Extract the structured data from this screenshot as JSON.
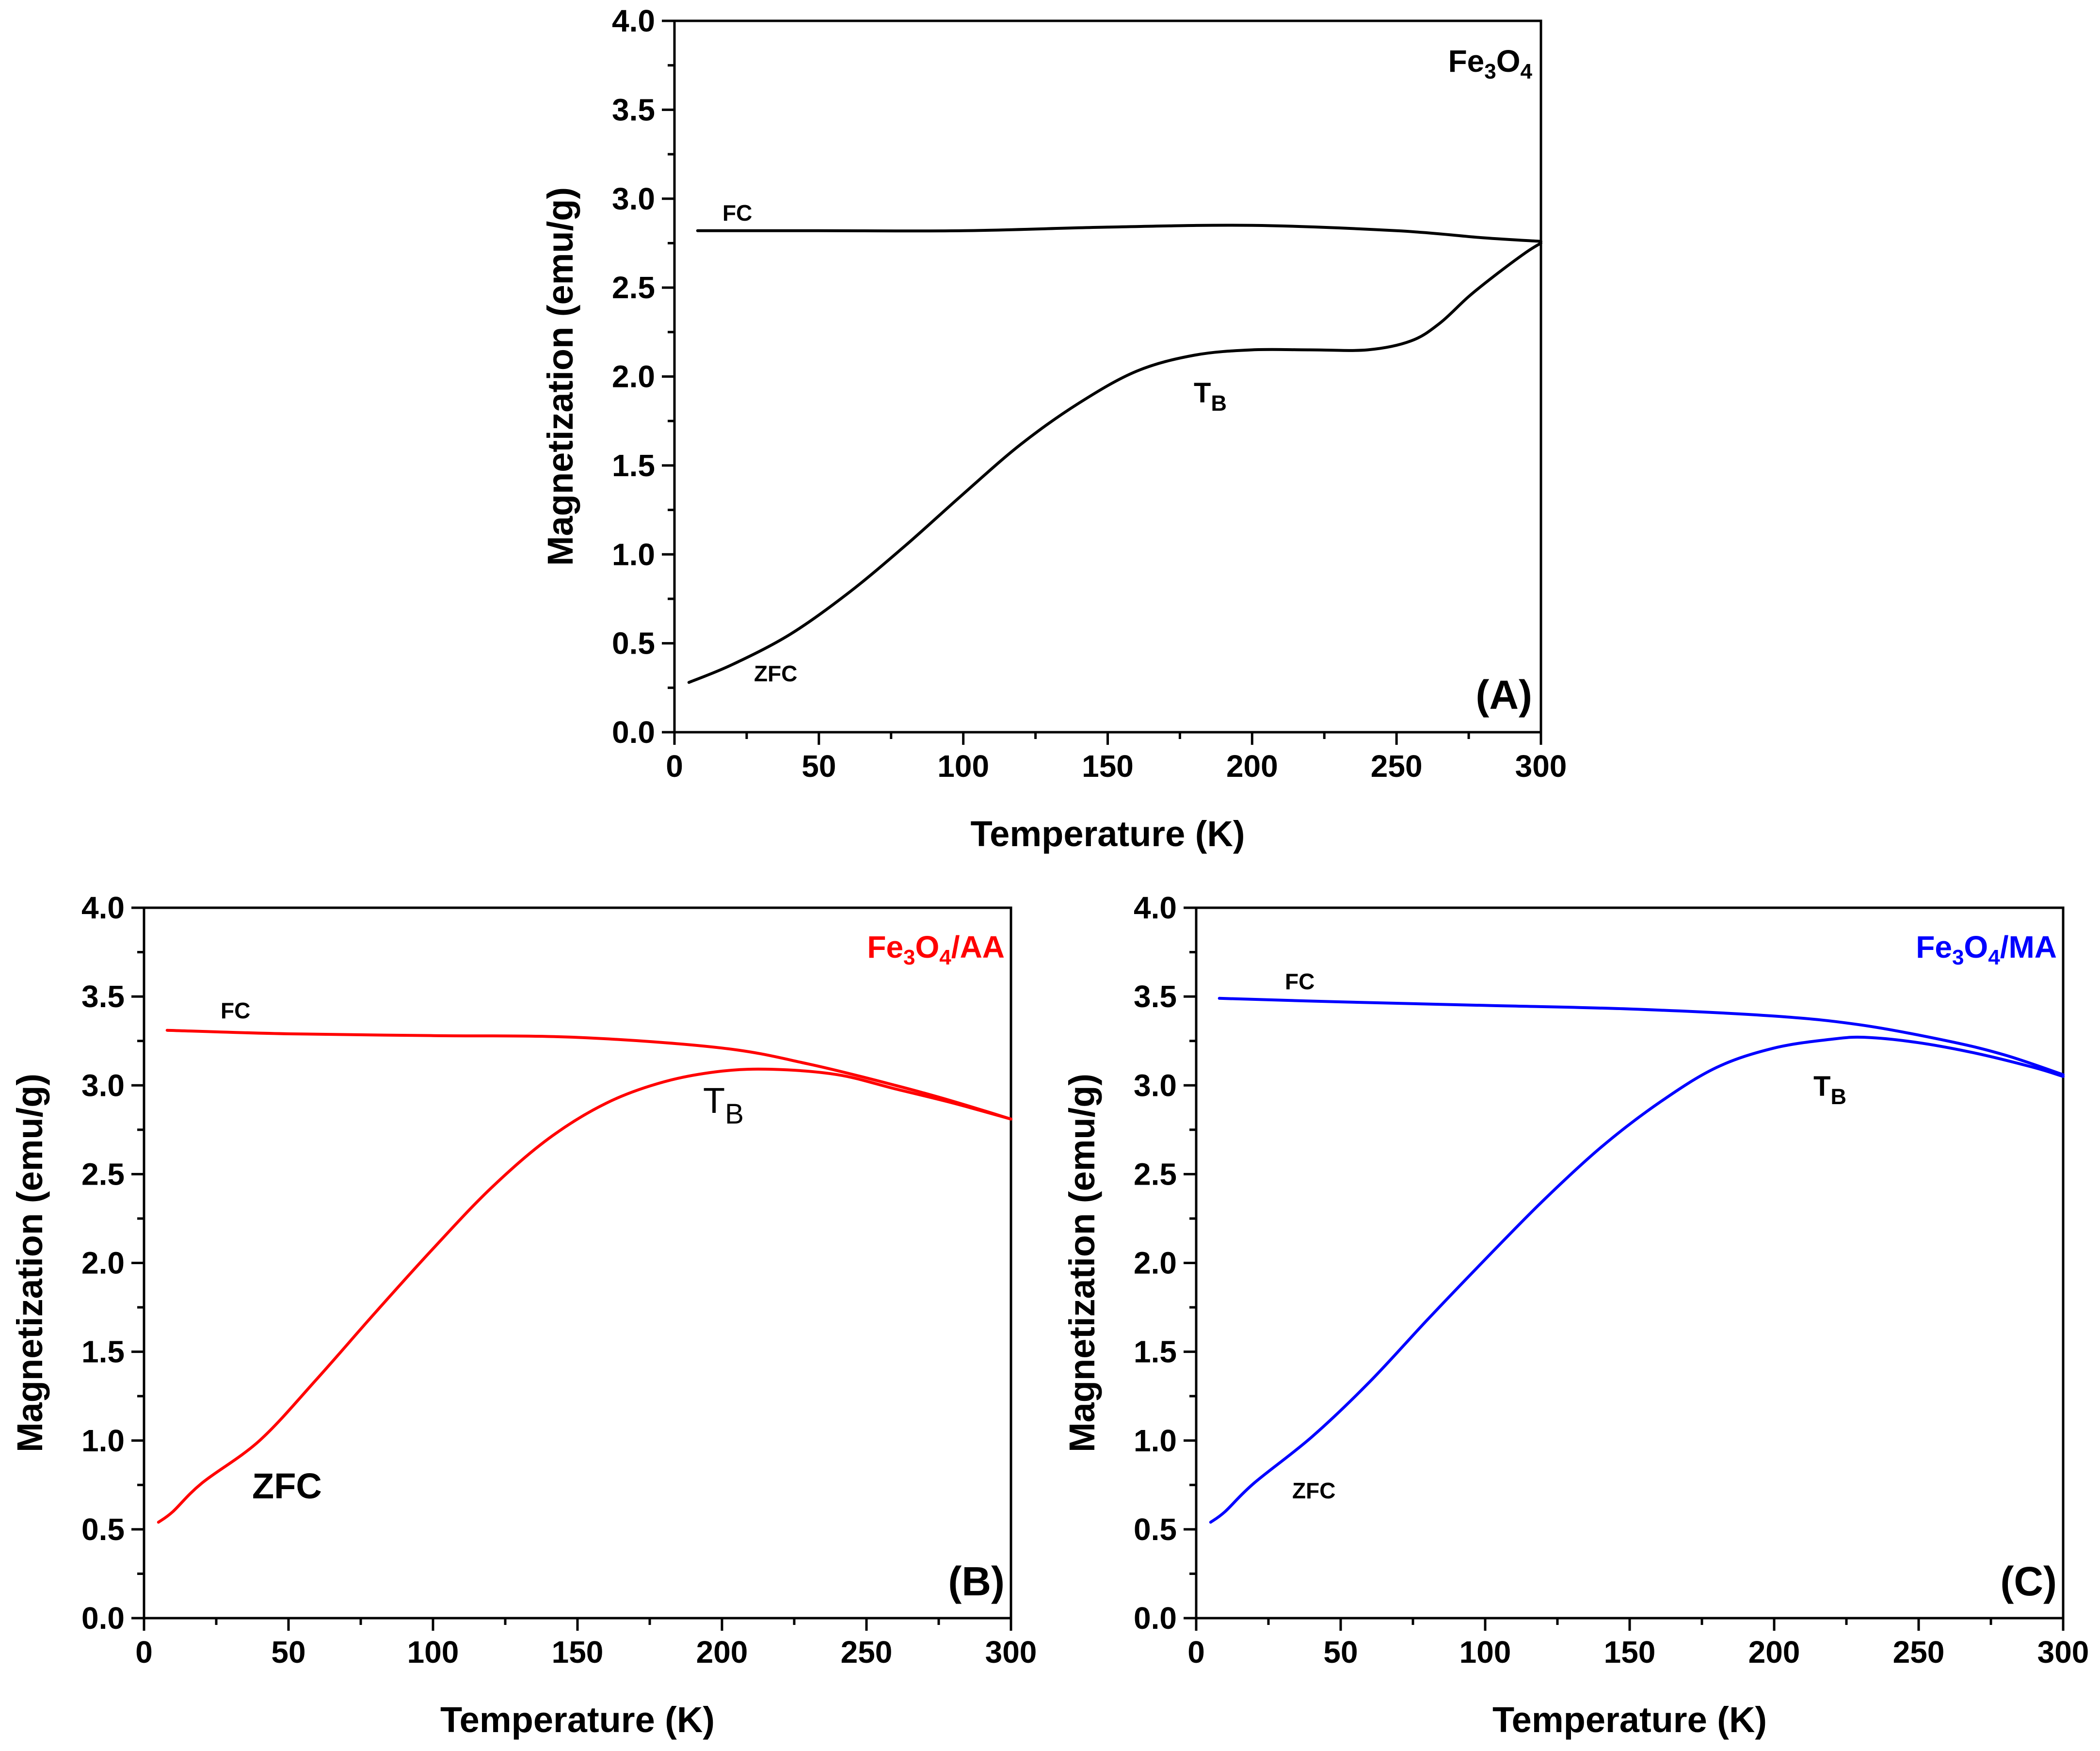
{
  "chart_data": [
    {
      "type": "line",
      "panel_label": "(A)",
      "sample": {
        "prefix": "Fe",
        "sub1": "3",
        "mid": "O",
        "sub2": "4",
        "suffix": ""
      },
      "xlabel": "Temperature (K)",
      "ylabel": "Magnetization (emu/g)",
      "xlim": [
        0,
        300
      ],
      "ylim": [
        0.0,
        4.0
      ],
      "xticks": [
        "0",
        "50",
        "100",
        "150",
        "200",
        "250",
        "300"
      ],
      "yticks": [
        "0.0",
        "0.5",
        "1.0",
        "1.5",
        "2.0",
        "2.5",
        "3.0",
        "3.5",
        "4.0"
      ],
      "color": "#000000",
      "series": [
        {
          "name": "FC",
          "x": [
            8,
            50,
            100,
            150,
            200,
            250,
            280,
            300
          ],
          "y": [
            2.82,
            2.82,
            2.82,
            2.84,
            2.85,
            2.82,
            2.78,
            2.76
          ]
        },
        {
          "name": "ZFC",
          "x": [
            5,
            20,
            40,
            60,
            80,
            100,
            120,
            140,
            160,
            180,
            200,
            220,
            240,
            255,
            265,
            275,
            285,
            295,
            300
          ],
          "y": [
            0.28,
            0.38,
            0.55,
            0.78,
            1.05,
            1.34,
            1.62,
            1.85,
            2.03,
            2.12,
            2.15,
            2.15,
            2.15,
            2.2,
            2.3,
            2.45,
            2.58,
            2.7,
            2.75
          ]
        }
      ],
      "annotations": {
        "fc": "FC",
        "zfc": "ZFC",
        "tb_main": "T",
        "tb_sub": "B"
      }
    },
    {
      "type": "line",
      "panel_label": "(B)",
      "sample": {
        "prefix": "Fe",
        "sub1": "3",
        "mid": "O",
        "sub2": "4",
        "suffix": "/AA"
      },
      "xlabel": "Temperature (K)",
      "ylabel": "Magnetization (emu/g)",
      "xlim": [
        0,
        300
      ],
      "ylim": [
        0.0,
        4.0
      ],
      "xticks": [
        "0",
        "50",
        "100",
        "150",
        "200",
        "250",
        "300"
      ],
      "yticks": [
        "0.0",
        "0.5",
        "1.0",
        "1.5",
        "2.0",
        "2.5",
        "3.0",
        "3.5",
        "4.0"
      ],
      "color": "#ff0000",
      "series": [
        {
          "name": "FC",
          "x": [
            8,
            50,
            100,
            150,
            200,
            230,
            260,
            280,
            300
          ],
          "y": [
            3.31,
            3.29,
            3.28,
            3.27,
            3.21,
            3.12,
            3.0,
            2.91,
            2.81
          ]
        },
        {
          "name": "ZFC",
          "x": [
            5,
            10,
            20,
            40,
            60,
            80,
            100,
            120,
            140,
            160,
            180,
            200,
            218,
            240,
            260,
            280,
            300
          ],
          "y": [
            0.54,
            0.6,
            0.76,
            1.0,
            1.35,
            1.72,
            2.08,
            2.42,
            2.7,
            2.9,
            3.02,
            3.08,
            3.09,
            3.06,
            2.98,
            2.9,
            2.81
          ]
        }
      ],
      "annotations": {
        "fc": "FC",
        "zfc": "ZFC",
        "tb_main": "T",
        "tb_sub": "B"
      }
    },
    {
      "type": "line",
      "panel_label": "(C)",
      "sample": {
        "prefix": "Fe",
        "sub1": "3",
        "mid": "O",
        "sub2": "4",
        "suffix": "/MA"
      },
      "xlabel": "Temperature (K)",
      "ylabel": "Magnetization (emu/g)",
      "xlim": [
        0,
        300
      ],
      "ylim": [
        0.0,
        4.0
      ],
      "xticks": [
        "0",
        "50",
        "100",
        "150",
        "200",
        "250",
        "300"
      ],
      "yticks": [
        "0.0",
        "0.5",
        "1.0",
        "1.5",
        "2.0",
        "2.5",
        "3.0",
        "3.5",
        "4.0"
      ],
      "color": "#0000ff",
      "series": [
        {
          "name": "FC",
          "x": [
            8,
            50,
            100,
            150,
            200,
            230,
            260,
            280,
            300
          ],
          "y": [
            3.49,
            3.47,
            3.45,
            3.43,
            3.39,
            3.34,
            3.25,
            3.17,
            3.06
          ]
        },
        {
          "name": "ZFC",
          "x": [
            5,
            10,
            20,
            40,
            60,
            80,
            100,
            120,
            140,
            160,
            180,
            200,
            220,
            232,
            250,
            270,
            290,
            300
          ],
          "y": [
            0.54,
            0.6,
            0.76,
            1.02,
            1.33,
            1.68,
            2.02,
            2.35,
            2.65,
            2.9,
            3.1,
            3.21,
            3.26,
            3.27,
            3.24,
            3.18,
            3.1,
            3.05
          ]
        }
      ],
      "annotations": {
        "fc": "FC",
        "zfc": "ZFC",
        "tb_main": "T",
        "tb_sub": "B"
      }
    }
  ]
}
